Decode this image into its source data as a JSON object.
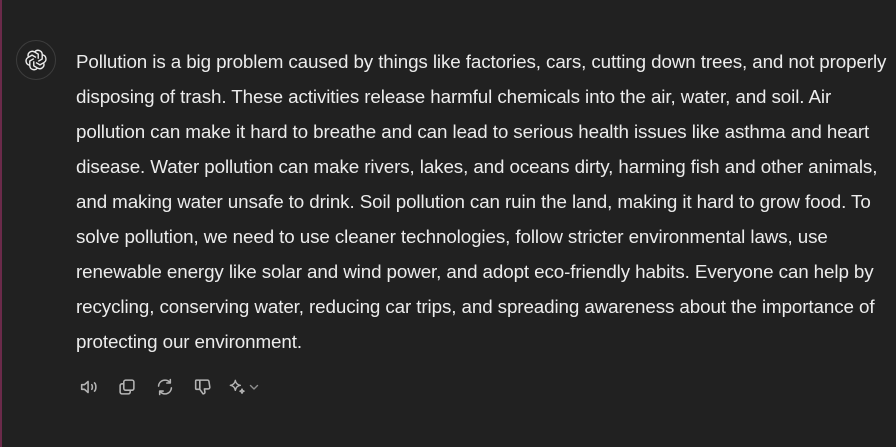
{
  "assistant": {
    "avatar_icon": "openai-logo-icon"
  },
  "message": {
    "text": "Pollution is a big problem caused by things like factories, cars, cutting down trees, and not properly disposing of trash. These activities release harmful chemicals into the air, water, and soil. Air pollution can make it hard to breathe and can lead to serious health issues like asthma and heart disease. Water pollution can make rivers, lakes, and oceans dirty, harming fish and other animals, and making water unsafe to drink. Soil pollution can ruin the land, making it hard to grow food. To solve pollution, we need to use cleaner technologies, follow stricter environmental laws, use renewable energy like solar and wind power, and adopt eco-friendly habits. Everyone can help by recycling, conserving water, reducing car trips, and spreading awareness about the importance of protecting our environment."
  },
  "actions": [
    {
      "name": "read-aloud",
      "icon": "speaker-icon"
    },
    {
      "name": "copy",
      "icon": "copy-icon"
    },
    {
      "name": "regenerate",
      "icon": "refresh-icon"
    },
    {
      "name": "bad-response",
      "icon": "thumbs-down-icon"
    },
    {
      "name": "switch-model",
      "icon": "sparkle-icon"
    }
  ],
  "colors": {
    "background": "#212121",
    "text": "#ececec",
    "icon": "#b4b4b4",
    "accent_edge": "#6b2a4a"
  }
}
